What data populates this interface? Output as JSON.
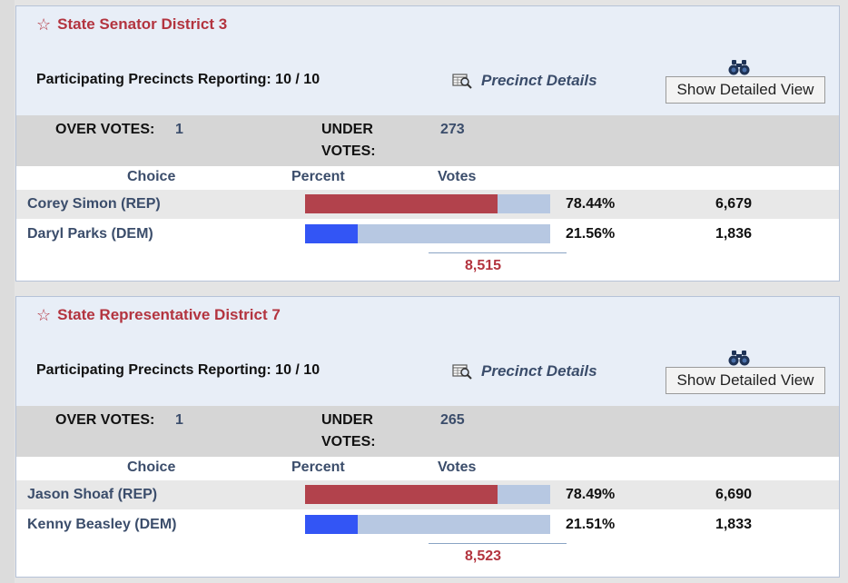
{
  "contests": [
    {
      "title": "State Senator District 3",
      "precincts_label": "Participating Precincts Reporting:",
      "precincts_value": "10 / 10",
      "precinct_details_label": "Precinct Details",
      "detailed_view_label": "Show Detailed View",
      "over_votes_label": "OVER VOTES:",
      "over_votes": "1",
      "under_votes_label_1": "UNDER",
      "under_votes_label_2": "VOTES:",
      "under_votes": "273",
      "col_choice": "Choice",
      "col_percent": "Percent",
      "col_votes": "Votes",
      "candidates": [
        {
          "name": "Corey Simon (REP)",
          "party": "REP",
          "percent_text": "78.44%",
          "percent": 78.44,
          "votes": "6,679"
        },
        {
          "name": "Daryl Parks (DEM)",
          "party": "DEM",
          "percent_text": "21.56%",
          "percent": 21.56,
          "votes": "1,836"
        }
      ],
      "total_votes": "8,515"
    },
    {
      "title": "State Representative District 7",
      "precincts_label": "Participating Precincts Reporting:",
      "precincts_value": "10 / 10",
      "precinct_details_label": "Precinct Details",
      "detailed_view_label": "Show Detailed View",
      "over_votes_label": "OVER VOTES:",
      "over_votes": "1",
      "under_votes_label_1": "UNDER",
      "under_votes_label_2": "VOTES:",
      "under_votes": "265",
      "col_choice": "Choice",
      "col_percent": "Percent",
      "col_votes": "Votes",
      "candidates": [
        {
          "name": "Jason Shoaf (REP)",
          "party": "REP",
          "percent_text": "78.49%",
          "percent": 78.49,
          "votes": "6,690"
        },
        {
          "name": "Kenny Beasley (DEM)",
          "party": "DEM",
          "percent_text": "21.51%",
          "percent": 21.51,
          "votes": "1,833"
        }
      ],
      "total_votes": "8,523"
    }
  ],
  "icons": {
    "title_star": "star-outline-icon",
    "precinct_details": "magnifier-table-icon",
    "detailed_view": "binoculars-icon"
  },
  "colors": {
    "title": "#b3343f",
    "rep_bar": "#b2424c",
    "dem_bar": "#3355f5",
    "bar_track": "#b7c8e2",
    "header_bg": "#e8eef7",
    "label_blue": "#3b4d6b"
  }
}
